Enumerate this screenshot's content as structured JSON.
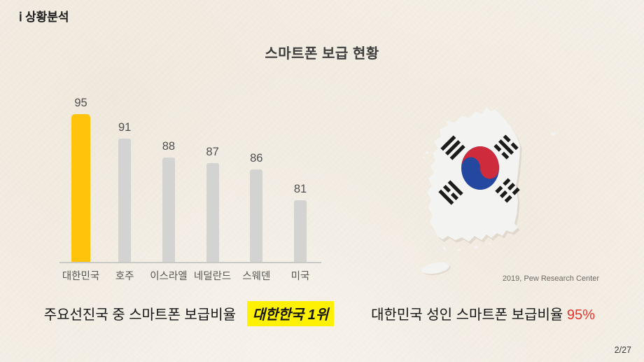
{
  "slide": {
    "section_label": "ⅰ 상황분석",
    "title": "스마트폰 보급 현황",
    "page_number": "2/27",
    "source_caption": "2019, Pew Research Center",
    "left_caption": {
      "text": "주요선진국 중 스마트폰 보급비율",
      "highlight": "대한한국 1위"
    },
    "right_caption": {
      "text": "대한민국 성인 스마트폰 보급비율",
      "value": "95%"
    }
  },
  "chart_data": {
    "type": "bar",
    "title": "스마트폰 보급 현황",
    "categories": [
      "대한민국",
      "호주",
      "이스라엘",
      "네덜란드",
      "스웨덴",
      "미국"
    ],
    "values": [
      95,
      91,
      88,
      87,
      86,
      81
    ],
    "highlight_index": 0,
    "xlabel": "",
    "ylabel": "",
    "ylim": [
      71,
      100
    ],
    "grid": false,
    "legend": false,
    "value_labels_shown": true
  },
  "map": {
    "name": "south-korea-map-with-taegukgi-flag",
    "elements": [
      "mainland",
      "jeju-island",
      "ulleungdo-island",
      "taegeuk-circle",
      "trigram-geon",
      "trigram-gam",
      "trigram-ri",
      "trigram-gon"
    ]
  },
  "colors": {
    "background": "#f5f0e7",
    "accent_bar_yellow": "#ffc30b",
    "default_bar_gray": "#d3d3d1",
    "highlight_bg_yellow": "#fff104",
    "percent_red": "#e8342a",
    "flag_red": "#ce2b3c",
    "flag_blue": "#24479f",
    "trigram_black": "#1c1c1c",
    "map_fill": "#f3f3f1",
    "axis_gray": "#c9c9c6"
  }
}
